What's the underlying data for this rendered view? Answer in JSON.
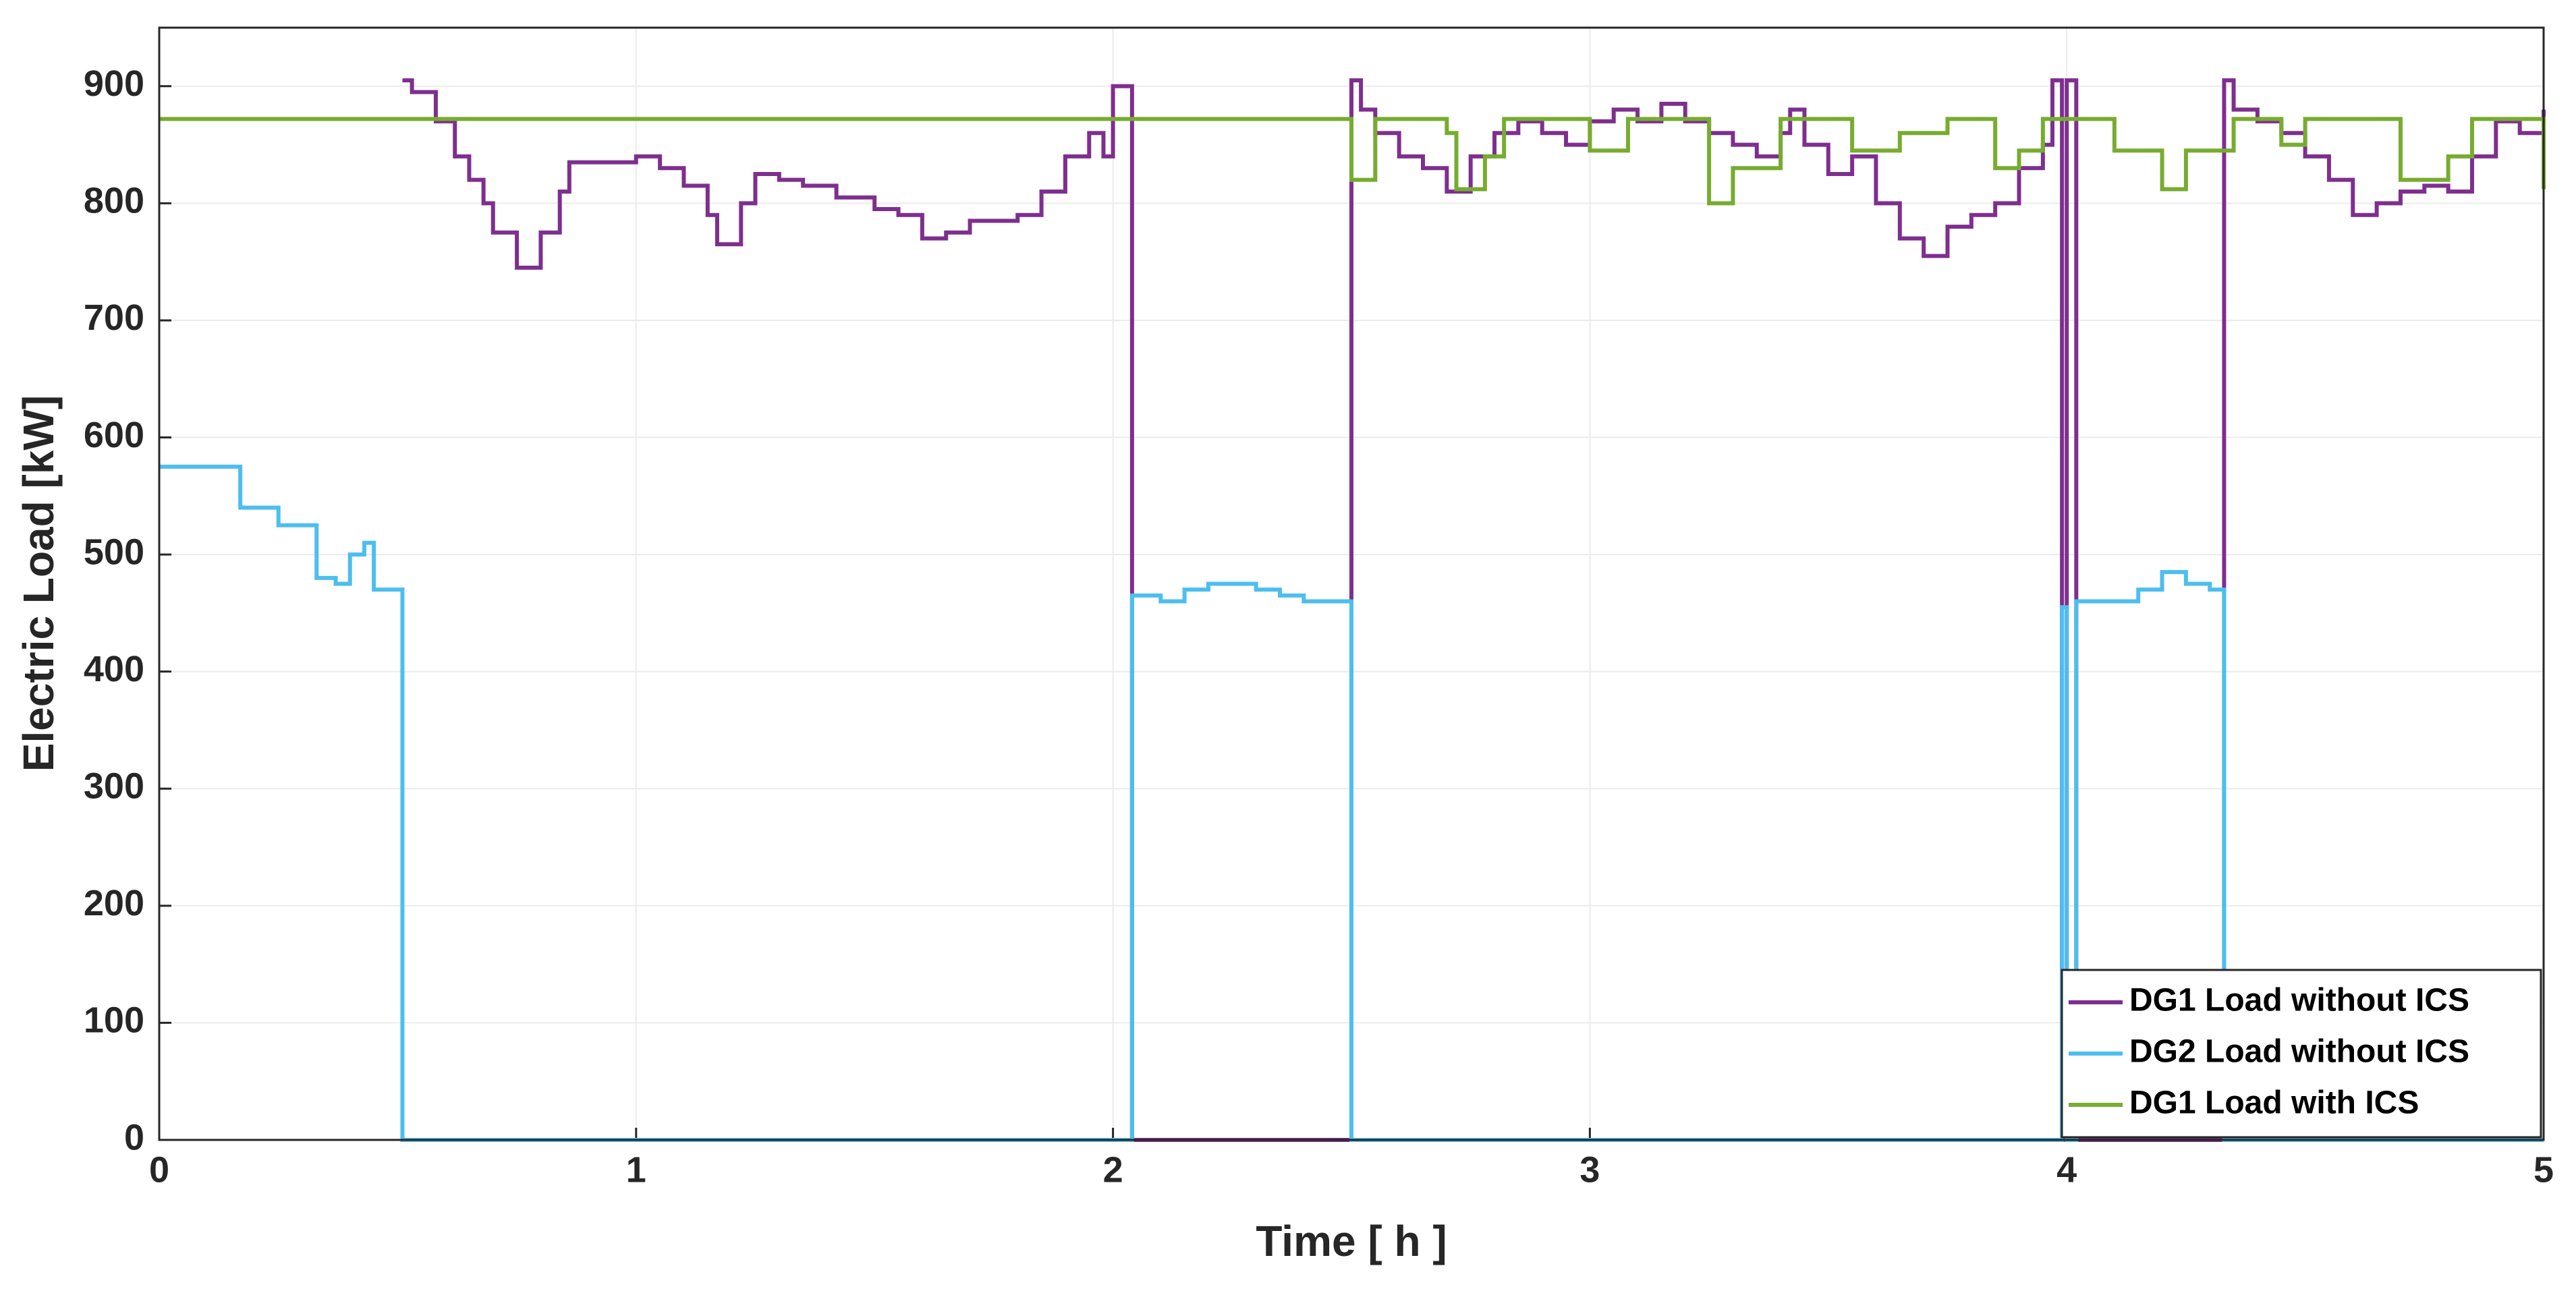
{
  "chart_data": {
    "type": "line",
    "xlabel": "Time [ h ]",
    "ylabel": "Electric Load [kW]",
    "xlim": [
      0,
      5
    ],
    "ylim": [
      0,
      950
    ],
    "xticks": [
      0,
      1,
      2,
      3,
      4,
      5
    ],
    "yticks": [
      0,
      100,
      200,
      300,
      400,
      500,
      600,
      700,
      800,
      900
    ],
    "grid": true,
    "step": true,
    "legend": "bottom-right",
    "series": [
      {
        "name": "DG1 Load without ICS",
        "color": "#7e2f8e",
        "x": [
          0.51,
          0.53,
          0.58,
          0.62,
          0.65,
          0.68,
          0.7,
          0.75,
          0.8,
          0.84,
          0.86,
          0.95,
          1.0,
          1.05,
          1.1,
          1.15,
          1.17,
          1.22,
          1.25,
          1.3,
          1.35,
          1.42,
          1.5,
          1.55,
          1.6,
          1.65,
          1.7,
          1.8,
          1.85,
          1.9,
          1.95,
          1.98,
          2.0,
          2.04,
          2.5,
          2.52,
          2.55,
          2.6,
          2.65,
          2.7,
          2.75,
          2.8,
          2.85,
          2.9,
          2.95,
          3.0,
          3.05,
          3.1,
          3.15,
          3.2,
          3.25,
          3.3,
          3.35,
          3.4,
          3.42,
          3.45,
          3.5,
          3.55,
          3.6,
          3.65,
          3.7,
          3.75,
          3.8,
          3.85,
          3.9,
          3.95,
          3.97,
          3.99,
          4.0,
          4.02,
          4.33,
          4.35,
          4.4,
          4.45,
          4.5,
          4.55,
          4.6,
          4.65,
          4.7,
          4.75,
          4.8,
          4.85,
          4.9,
          4.95,
          5.0
        ],
        "values": [
          905,
          895,
          870,
          840,
          820,
          800,
          775,
          745,
          775,
          810,
          835,
          835,
          840,
          830,
          815,
          790,
          765,
          800,
          825,
          820,
          815,
          805,
          795,
          790,
          770,
          775,
          785,
          790,
          810,
          840,
          860,
          840,
          900,
          0,
          905,
          880,
          860,
          840,
          830,
          810,
          840,
          860,
          870,
          860,
          850,
          870,
          880,
          870,
          885,
          870,
          860,
          850,
          840,
          860,
          880,
          850,
          825,
          840,
          800,
          770,
          755,
          780,
          790,
          800,
          830,
          850,
          905,
          0,
          905,
          0,
          905,
          880,
          870,
          860,
          840,
          820,
          790,
          800,
          810,
          815,
          810,
          840,
          870,
          860,
          880
        ]
      },
      {
        "name": "DG2 Load without ICS",
        "color": "#4dbeee",
        "x": [
          0,
          0.17,
          0.25,
          0.33,
          0.37,
          0.4,
          0.43,
          0.45,
          0.51,
          2.04,
          2.1,
          2.15,
          2.2,
          2.3,
          2.35,
          2.4,
          2.5,
          3.99,
          4.0,
          4.02,
          4.1,
          4.15,
          4.2,
          4.25,
          4.3,
          4.33,
          5.0
        ],
        "values": [
          575,
          540,
          525,
          480,
          475,
          500,
          510,
          470,
          0,
          465,
          460,
          470,
          475,
          470,
          465,
          460,
          0,
          455,
          0,
          460,
          460,
          470,
          485,
          475,
          470,
          0,
          0
        ]
      },
      {
        "name": "DG1 Load with ICS",
        "color": "#77ac30",
        "x": [
          0,
          2.5,
          2.55,
          2.7,
          2.72,
          2.78,
          2.82,
          3.0,
          3.08,
          3.25,
          3.3,
          3.4,
          3.55,
          3.65,
          3.75,
          3.85,
          3.9,
          3.95,
          4.1,
          4.2,
          4.25,
          4.35,
          4.45,
          4.5,
          4.7,
          4.8,
          4.85,
          5.0
        ],
        "values": [
          872,
          820,
          872,
          860,
          812,
          840,
          872,
          845,
          872,
          800,
          830,
          872,
          845,
          860,
          872,
          830,
          845,
          872,
          845,
          812,
          845,
          872,
          850,
          872,
          820,
          840,
          872,
          812
        ]
      }
    ]
  }
}
